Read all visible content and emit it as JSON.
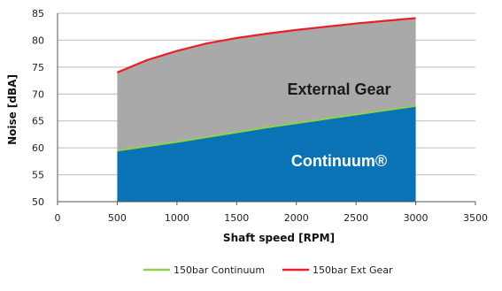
{
  "chart_data": {
    "type": "area",
    "xlabel": "Shaft speed [RPM]",
    "ylabel": "Noise [dBA]",
    "xlim": [
      0,
      3500
    ],
    "ylim": [
      50,
      85
    ],
    "xticks": [
      "0",
      "500",
      "1000",
      "1500",
      "2000",
      "2500",
      "3000",
      "3500"
    ],
    "yticks": [
      "50",
      "55",
      "60",
      "65",
      "70",
      "75",
      "80",
      "85"
    ],
    "grid": "horizontal",
    "legend_position": "bottom",
    "series": [
      {
        "name": "150bar Continuum",
        "color": "#8fd14f",
        "fill": "#0a73b5",
        "x": [
          500,
          750,
          1000,
          1250,
          1500,
          1750,
          2000,
          2250,
          2500,
          2750,
          3000
        ],
        "values": [
          59.5,
          60.3,
          61.1,
          62.0,
          62.9,
          63.8,
          64.6,
          65.4,
          66.2,
          67.0,
          67.8
        ]
      },
      {
        "name": "150bar Ext Gear",
        "color": "#e8202a",
        "fill": "#a9a9a9",
        "x": [
          500,
          750,
          1000,
          1250,
          1500,
          1750,
          2000,
          2250,
          2500,
          2750,
          3000
        ],
        "values": [
          74.0,
          76.3,
          78.0,
          79.4,
          80.4,
          81.2,
          81.9,
          82.5,
          83.1,
          83.6,
          84.1
        ]
      }
    ],
    "annotations": [
      {
        "text": "External Gear",
        "color": "#1a1a1a"
      },
      {
        "text": "Continuum®",
        "color": "#ffffff"
      }
    ]
  }
}
